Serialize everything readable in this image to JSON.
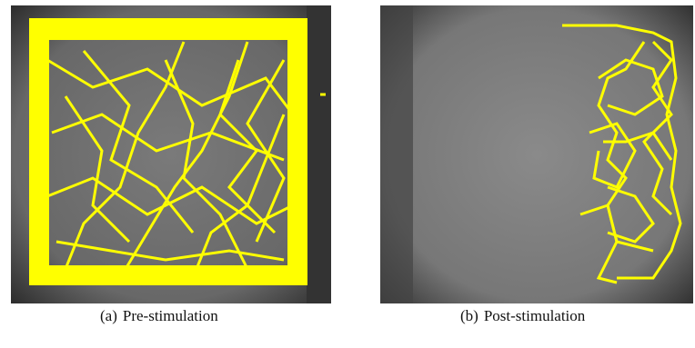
{
  "figures": [
    {
      "label": "(a)",
      "caption": "Pre-stimulation"
    },
    {
      "label": "(b)",
      "caption": "Post-stimulation"
    }
  ]
}
